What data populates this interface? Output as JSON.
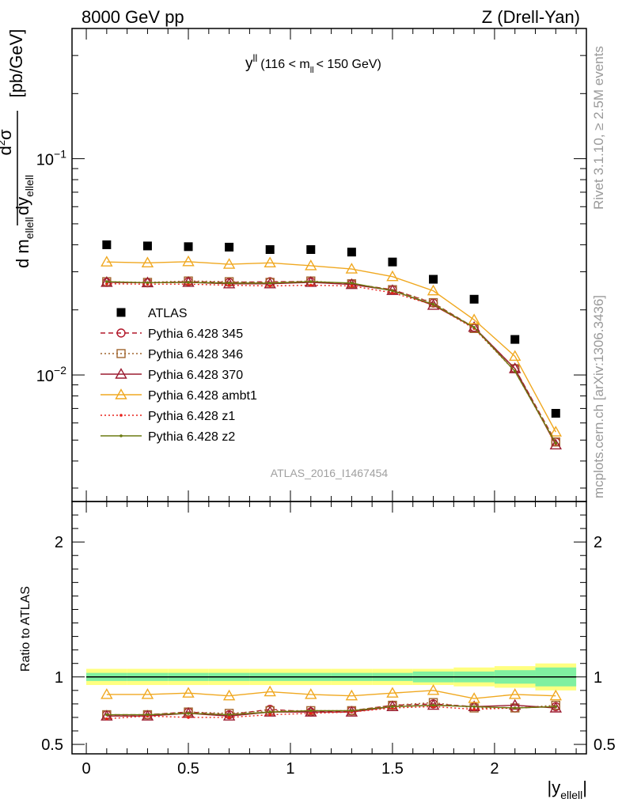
{
  "header": {
    "left": "8000 GeV pp",
    "right": "Z (Drell-Yan)"
  },
  "side_labels": {
    "rivet": "Rivet 3.1.10, ≥ 2.5M events",
    "mcplots": "mcplots.cern.ch [arXiv:1306.3436]"
  },
  "panel_title": {
    "main": "y",
    "sup": "ll",
    "range_pre": "(116 < m",
    "range_sub": "ll",
    "range_post": "< 150 GeV)"
  },
  "analysis_id": "ATLAS_2016_I1467454",
  "y_axis_label": {
    "numer_d": "d",
    "numer_sup": "2",
    "numer_sigma": "σ",
    "denom_d1": "d m",
    "denom_sub1": "ellell",
    "denom_d2": "dy",
    "denom_sub2": "ellell",
    "unit": "[pb/GeV]"
  },
  "ratio_ylabel": "Ratio to ATLAS",
  "x_axis_label": {
    "text": "|y",
    "sub": "ellell",
    "close": "|"
  },
  "colors": {
    "data": "#000000",
    "p345": "#b2182b",
    "p346": "#a0642d",
    "p370": "#9b1c31",
    "ambt1": "#f0a820",
    "z1": "#e8201a",
    "z2": "#6b7a10",
    "band_outer": "#ffff80",
    "band_inner": "#80f0a0"
  },
  "chart_data": [
    {
      "type": "scatter",
      "panel": "main",
      "yscale": "log",
      "xlim": [
        -0.07,
        2.45
      ],
      "ylim": [
        0.0026,
        0.4
      ],
      "x_ticks": [
        0,
        0.5,
        1,
        1.5,
        2
      ],
      "y_tick_labels": [
        {
          "base": "10",
          "exp": "−1",
          "value": 0.1
        },
        {
          "base": "10",
          "exp": "−2",
          "value": 0.01
        }
      ],
      "x": [
        0.1,
        0.3,
        0.5,
        0.7,
        0.9,
        1.1,
        1.3,
        1.5,
        1.7,
        1.9,
        2.1,
        2.3
      ],
      "bin_edges": [
        0.0,
        0.2,
        0.4,
        0.6,
        0.8,
        1.0,
        1.2,
        1.4,
        1.6,
        1.8,
        2.0,
        2.2,
        2.4
      ],
      "series": [
        {
          "key": "data",
          "name": "ATLAS",
          "marker": "square",
          "values": [
            0.04,
            0.0395,
            0.0392,
            0.039,
            0.038,
            0.038,
            0.037,
            0.0333,
            0.0277,
            0.0224,
            0.0146,
            0.00665
          ]
        },
        {
          "key": "p345",
          "name": "Pythia 6.428 345",
          "marker": "circle",
          "dash": "6,4",
          "values": [
            0.0268,
            0.0267,
            0.027,
            0.0268,
            0.027,
            0.027,
            0.0264,
            0.0248,
            0.0215,
            0.0166,
            0.0107,
            0.0049
          ]
        },
        {
          "key": "p346",
          "name": "Pythia 6.428 346",
          "marker": "square-open",
          "dash": "2,3",
          "values": [
            0.027,
            0.0268,
            0.0272,
            0.027,
            0.0268,
            0.0272,
            0.0264,
            0.0248,
            0.0216,
            0.0164,
            0.0107,
            0.0049
          ]
        },
        {
          "key": "p370",
          "name": "Pythia 6.428 370",
          "marker": "triangle-open",
          "values": [
            0.0268,
            0.0267,
            0.0268,
            0.0264,
            0.0264,
            0.0268,
            0.0262,
            0.0246,
            0.021,
            0.0166,
            0.0107,
            0.00475
          ]
        },
        {
          "key": "ambt1",
          "name": "Pythia 6.428 ambt1",
          "marker": "triangle-open",
          "values": [
            0.0333,
            0.033,
            0.0334,
            0.0325,
            0.033,
            0.032,
            0.0309,
            0.0285,
            0.0245,
            0.018,
            0.0122,
            0.00545
          ]
        },
        {
          "key": "z1",
          "name": "Pythia 6.428 z1",
          "marker": "dot",
          "dash": "2,3",
          "values": [
            0.0264,
            0.0263,
            0.0263,
            0.026,
            0.0258,
            0.026,
            0.0258,
            0.024,
            0.0211,
            0.0164,
            0.0104,
            0.0048
          ]
        },
        {
          "key": "z2",
          "name": "Pythia 6.428 z2",
          "marker": "dot",
          "values": [
            0.027,
            0.0267,
            0.0268,
            0.0266,
            0.0266,
            0.027,
            0.0266,
            0.0245,
            0.0212,
            0.0166,
            0.0104,
            0.00483
          ]
        }
      ]
    },
    {
      "type": "line",
      "panel": "ratio",
      "xlim": [
        -0.07,
        2.45
      ],
      "ylim": [
        0.43,
        2.3
      ],
      "y_tick_labels": [
        {
          "label": "2",
          "value": 2
        },
        {
          "label": "1",
          "value": 1
        },
        {
          "label": "0.5",
          "value": 0.5
        }
      ],
      "x": [
        0.1,
        0.3,
        0.5,
        0.7,
        0.9,
        1.1,
        1.3,
        1.5,
        1.7,
        1.9,
        2.1,
        2.3
      ],
      "band_outer_halfwidth": [
        0.06,
        0.06,
        0.06,
        0.06,
        0.06,
        0.06,
        0.06,
        0.06,
        0.06,
        0.07,
        0.08,
        0.1
      ],
      "band_inner_halfwidth": [
        0.03,
        0.03,
        0.03,
        0.03,
        0.03,
        0.03,
        0.03,
        0.03,
        0.04,
        0.04,
        0.05,
        0.07
      ],
      "series": [
        {
          "key": "p345",
          "values": [
            0.72,
            0.72,
            0.74,
            0.72,
            0.76,
            0.74,
            0.75,
            0.79,
            0.8,
            0.78,
            0.77,
            0.78
          ]
        },
        {
          "key": "p346",
          "values": [
            0.72,
            0.72,
            0.74,
            0.73,
            0.75,
            0.75,
            0.75,
            0.79,
            0.81,
            0.77,
            0.77,
            0.79
          ]
        },
        {
          "key": "p370",
          "values": [
            0.71,
            0.71,
            0.73,
            0.71,
            0.74,
            0.74,
            0.74,
            0.78,
            0.79,
            0.78,
            0.79,
            0.77
          ]
        },
        {
          "key": "ambt1",
          "values": [
            0.87,
            0.87,
            0.88,
            0.86,
            0.89,
            0.87,
            0.86,
            0.88,
            0.9,
            0.84,
            0.87,
            0.86
          ]
        },
        {
          "key": "z1",
          "values": [
            0.69,
            0.71,
            0.7,
            0.7,
            0.72,
            0.73,
            0.74,
            0.77,
            0.78,
            0.76,
            0.77,
            0.78
          ]
        },
        {
          "key": "z2",
          "values": [
            0.72,
            0.72,
            0.73,
            0.72,
            0.74,
            0.75,
            0.75,
            0.78,
            0.79,
            0.78,
            0.77,
            0.78
          ]
        }
      ]
    }
  ]
}
